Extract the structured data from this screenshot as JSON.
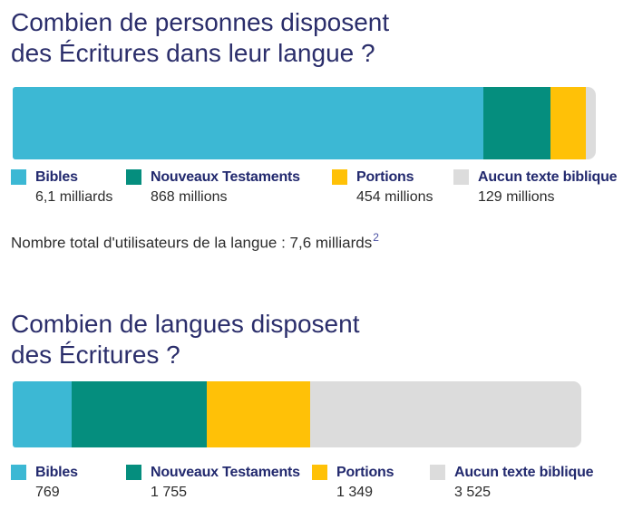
{
  "sections": [
    {
      "title_lines": [
        "Combien de personnes disposent",
        "des Écritures dans leur langue ?"
      ],
      "legend": [
        {
          "label": "Bibles",
          "value": "6,1 milliards",
          "color": "#3cb8d4"
        },
        {
          "label": "Nouveaux Testaments",
          "value": "868 millions",
          "color": "#058e7e"
        },
        {
          "label": "Portions",
          "value": "454 millions",
          "color": "#ffc107"
        },
        {
          "label": "Aucun texte biblique",
          "value": "129 millions",
          "color": "#dcdcdc"
        }
      ],
      "footnote": {
        "text": "Nombre total d'utilisateurs de la langue : 7,6 milliards",
        "superscript": "2"
      }
    },
    {
      "title_lines": [
        "Combien de langues disposent",
        "des Écritures ?"
      ],
      "legend": [
        {
          "label": "Bibles",
          "value": "769",
          "color": "#3cb8d4"
        },
        {
          "label": "Nouveaux Testaments",
          "value": "1 755",
          "color": "#058e7e"
        },
        {
          "label": "Portions",
          "value": "1 349",
          "color": "#ffc107"
        },
        {
          "label": "Aucun texte biblique",
          "value": "3 525",
          "color": "#dcdcdc"
        }
      ]
    }
  ],
  "chart_data": [
    {
      "type": "bar",
      "orientation": "horizontal-stacked",
      "title": "Combien de personnes disposent des Écritures dans leur langue ?",
      "categories": [
        "Bibles",
        "Nouveaux Testaments",
        "Portions",
        "Aucun texte biblique"
      ],
      "values_millions": [
        6100,
        868,
        454,
        129
      ],
      "value_labels": [
        "6,1 milliards",
        "868 millions",
        "454 millions",
        "129 millions"
      ],
      "colors": [
        "#3cb8d4",
        "#058e7e",
        "#ffc107",
        "#dcdcdc"
      ],
      "annotation": "Nombre total d'utilisateurs de la langue : 7,6 milliards²",
      "legend_position": "below",
      "axes": "none"
    },
    {
      "type": "bar",
      "orientation": "horizontal-stacked",
      "title": "Combien de langues disposent des Écritures ?",
      "categories": [
        "Bibles",
        "Nouveaux Testaments",
        "Portions",
        "Aucun texte biblique"
      ],
      "values": [
        769,
        1755,
        1349,
        3525
      ],
      "value_labels": [
        "769",
        "1 755",
        "1 349",
        "3 525"
      ],
      "colors": [
        "#3cb8d4",
        "#058e7e",
        "#ffc107",
        "#dcdcdc"
      ],
      "legend_position": "below",
      "axes": "none"
    }
  ],
  "accent_colors": {
    "bibles": "#3cb8d4",
    "nouveaux_testaments": "#058e7e",
    "portions": "#ffc107",
    "aucun_texte_biblique": "#dcdcdc",
    "title_navy": "#2b2e6b",
    "legend_navy": "#22296e",
    "footnote_superscript_blue": "#4a50a3"
  }
}
